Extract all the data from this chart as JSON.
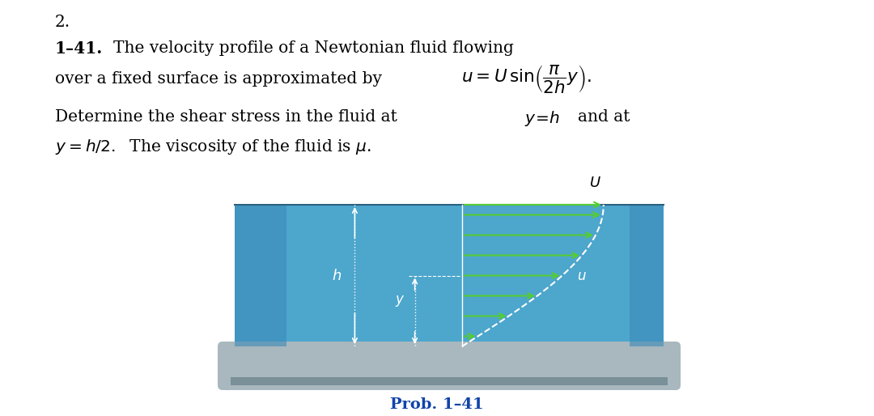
{
  "page_bg": "#ffffff",
  "number_label": "2.",
  "problem_number": "1–41.",
  "fluid_color": "#4da6cc",
  "fluid_color_left": "#3a8ab8",
  "fluid_color_right": "#3a8ab8",
  "ground_color": "#a8b8be",
  "ground_dark": "#7a9098",
  "arrow_color": "#55cc33",
  "white": "#ffffff",
  "caption_color": "#1144aa",
  "caption": "Prob. 1–41",
  "font_size_text": 14.5,
  "font_size_caption": 14
}
